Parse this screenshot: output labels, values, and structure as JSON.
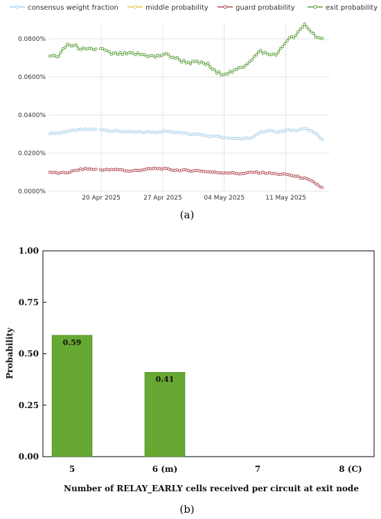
{
  "chart_data": [
    {
      "type": "line",
      "panel_label": "(a)",
      "x_ticks": [
        "20 Apr 2025",
        "27 Apr 2025",
        "04 May 2025",
        "11 May 2025"
      ],
      "y_ticks": [
        "0.0000%",
        "0.0200%",
        "0.0400%",
        "0.0600%",
        "0.0800%"
      ],
      "ylim": [
        0,
        0.088
      ],
      "grid": true,
      "legend_position": "top",
      "x_dates": [
        "2025-04-14",
        "2025-04-15",
        "2025-04-16",
        "2025-04-17",
        "2025-04-18",
        "2025-04-19",
        "2025-04-20",
        "2025-04-21",
        "2025-04-22",
        "2025-04-23",
        "2025-04-24",
        "2025-04-25",
        "2025-04-26",
        "2025-04-27",
        "2025-04-28",
        "2025-04-29",
        "2025-04-30",
        "2025-05-01",
        "2025-05-02",
        "2025-05-03",
        "2025-05-04",
        "2025-05-05",
        "2025-05-06",
        "2025-05-07",
        "2025-05-08",
        "2025-05-09",
        "2025-05-10",
        "2025-05-11",
        "2025-05-12",
        "2025-05-13",
        "2025-05-14",
        "2025-05-15"
      ],
      "series": [
        {
          "name": "consensus weight fraction",
          "color": "#a9cfe9",
          "values": [
            0.0305,
            0.0305,
            0.0315,
            0.032,
            0.0325,
            0.0325,
            0.0325,
            0.0315,
            0.0315,
            0.031,
            0.031,
            0.031,
            0.031,
            0.0315,
            0.031,
            0.031,
            0.03,
            0.03,
            0.029,
            0.029,
            0.028,
            0.028,
            0.0275,
            0.028,
            0.031,
            0.032,
            0.031,
            0.032,
            0.032,
            0.033,
            0.031,
            0.0275
          ]
        },
        {
          "name": "middle probability",
          "color": "#e6c84a",
          "values": []
        },
        {
          "name": "guard probability",
          "color": "#b0484f",
          "values": [
            0.01,
            0.0095,
            0.0098,
            0.011,
            0.0118,
            0.0115,
            0.0113,
            0.0112,
            0.0115,
            0.0105,
            0.011,
            0.0115,
            0.012,
            0.0118,
            0.0112,
            0.011,
            0.0108,
            0.0108,
            0.0102,
            0.0098,
            0.0098,
            0.0095,
            0.0092,
            0.01,
            0.0098,
            0.0095,
            0.009,
            0.0088,
            0.0078,
            0.0068,
            0.0048,
            0.0018
          ]
        },
        {
          "name": "exit probability",
          "color": "#5a9e3a",
          "values": [
            0.071,
            0.071,
            0.077,
            0.076,
            0.074,
            0.0745,
            0.0745,
            0.072,
            0.072,
            0.072,
            0.072,
            0.0715,
            0.0705,
            0.072,
            0.0705,
            0.0685,
            0.0675,
            0.0675,
            0.0665,
            0.062,
            0.062,
            0.063,
            0.0655,
            0.0695,
            0.0735,
            0.0715,
            0.0725,
            0.0795,
            0.0815,
            0.0875,
            0.0825,
            0.0795
          ]
        }
      ]
    },
    {
      "type": "bar",
      "panel_label": "(b)",
      "categories": [
        "5",
        "6 (m)",
        "7",
        "8 (C)"
      ],
      "values": [
        0.59,
        0.41,
        0,
        0
      ],
      "value_labels": [
        "0.59",
        "0.41",
        "",
        ""
      ],
      "ylabel": "Probability",
      "xlabel": "Number of RELAY_EARLY cells received per circuit at exit node",
      "y_ticks": [
        "0.00",
        "0.25",
        "0.50",
        "0.75",
        "1.00"
      ],
      "ylim": [
        0,
        1
      ],
      "bar_color": "#66a832"
    }
  ]
}
